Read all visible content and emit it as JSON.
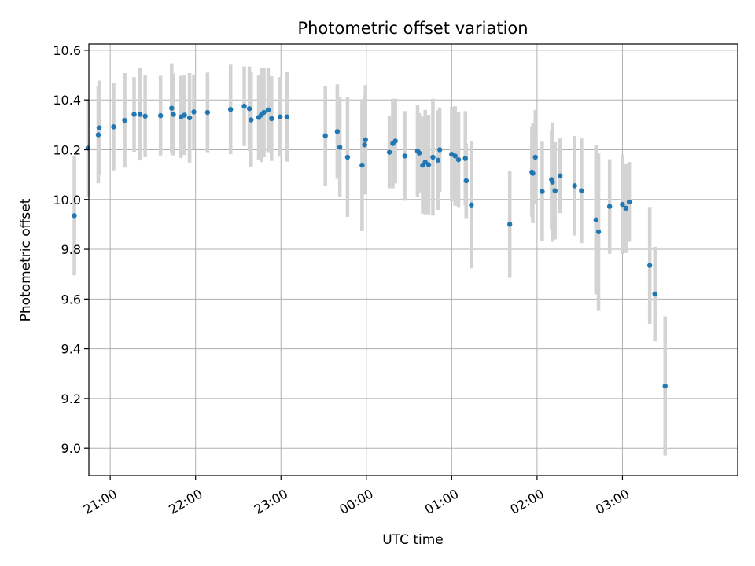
{
  "chart_data": {
    "type": "scatter",
    "title": "Photometric offset variation",
    "xlabel": "UTC time",
    "ylabel": "Photometric offset",
    "x_tick_labels": [
      "21:00",
      "22:00",
      "23:00",
      "00:00",
      "01:00",
      "02:00",
      "03:00"
    ],
    "x_tick_hours": [
      21,
      22,
      23,
      24,
      25,
      26,
      27
    ],
    "y_ticks": [
      9.0,
      9.2,
      9.4,
      9.6,
      9.8,
      10.0,
      10.2,
      10.4,
      10.6
    ],
    "xlim_hours": [
      20.75,
      28.35
    ],
    "ylim": [
      8.89,
      10.625
    ],
    "grid": true,
    "colors": {
      "point": "#1f77b4",
      "errorbar": "#d3d3d3",
      "grid": "#b0b0b0"
    },
    "points_hours_value_error": [
      [
        20.58,
        9.935,
        0.24
      ],
      [
        20.74,
        10.207,
        0.195
      ],
      [
        20.86,
        10.26,
        0.195
      ],
      [
        20.87,
        10.288,
        0.19
      ],
      [
        21.04,
        10.292,
        0.175
      ],
      [
        21.17,
        10.318,
        0.19
      ],
      [
        21.28,
        10.342,
        0.15
      ],
      [
        21.35,
        10.342,
        0.185
      ],
      [
        21.41,
        10.335,
        0.165
      ],
      [
        21.59,
        10.337,
        0.16
      ],
      [
        21.72,
        10.367,
        0.18
      ],
      [
        21.74,
        10.342,
        0.165
      ],
      [
        21.83,
        10.332,
        0.165
      ],
      [
        21.87,
        10.339,
        0.16
      ],
      [
        21.93,
        10.328,
        0.18
      ],
      [
        21.98,
        10.352,
        0.15
      ],
      [
        22.14,
        10.35,
        0.16
      ],
      [
        22.41,
        10.362,
        0.18
      ],
      [
        22.57,
        10.375,
        0.16
      ],
      [
        22.63,
        10.365,
        0.17
      ],
      [
        22.65,
        10.32,
        0.19
      ],
      [
        22.74,
        10.33,
        0.17
      ],
      [
        22.77,
        10.34,
        0.19
      ],
      [
        22.8,
        10.35,
        0.18
      ],
      [
        22.85,
        10.36,
        0.17
      ],
      [
        22.89,
        10.325,
        0.17
      ],
      [
        22.99,
        10.332,
        0.16
      ],
      [
        23.07,
        10.332,
        0.18
      ],
      [
        23.52,
        10.256,
        0.2
      ],
      [
        23.66,
        10.273,
        0.19
      ],
      [
        23.69,
        10.21,
        0.2
      ],
      [
        23.78,
        10.17,
        0.24
      ],
      [
        23.95,
        10.138,
        0.265
      ],
      [
        23.98,
        10.22,
        0.2
      ],
      [
        23.99,
        10.24,
        0.22
      ],
      [
        24.27,
        10.19,
        0.145
      ],
      [
        24.31,
        10.225,
        0.18
      ],
      [
        24.34,
        10.235,
        0.17
      ],
      [
        24.45,
        10.175,
        0.18
      ],
      [
        24.6,
        10.195,
        0.185
      ],
      [
        24.62,
        10.187,
        0.16
      ],
      [
        24.66,
        10.138,
        0.195
      ],
      [
        24.69,
        10.15,
        0.21
      ],
      [
        24.73,
        10.14,
        0.2
      ],
      [
        24.78,
        10.17,
        0.235
      ],
      [
        24.84,
        10.158,
        0.2
      ],
      [
        24.86,
        10.2,
        0.17
      ],
      [
        25.0,
        10.182,
        0.19
      ],
      [
        25.04,
        10.175,
        0.2
      ],
      [
        25.08,
        10.16,
        0.19
      ],
      [
        25.16,
        10.165,
        0.19
      ],
      [
        25.17,
        10.075,
        0.15
      ],
      [
        25.23,
        9.978,
        0.255
      ],
      [
        25.68,
        9.9,
        0.215
      ],
      [
        25.94,
        10.11,
        0.18
      ],
      [
        25.95,
        10.105,
        0.2
      ],
      [
        25.98,
        10.17,
        0.19
      ],
      [
        26.06,
        10.032,
        0.2
      ],
      [
        26.17,
        10.08,
        0.2
      ],
      [
        26.18,
        10.07,
        0.24
      ],
      [
        26.21,
        10.035,
        0.195
      ],
      [
        26.27,
        10.095,
        0.15
      ],
      [
        26.44,
        10.055,
        0.2
      ],
      [
        26.52,
        10.035,
        0.21
      ],
      [
        26.69,
        9.918,
        0.3
      ],
      [
        26.72,
        9.87,
        0.315
      ],
      [
        26.85,
        9.972,
        0.19
      ],
      [
        27.0,
        9.98,
        0.2
      ],
      [
        27.04,
        9.965,
        0.18
      ],
      [
        27.08,
        9.99,
        0.16
      ],
      [
        27.32,
        9.735,
        0.235
      ],
      [
        27.38,
        9.62,
        0.19
      ],
      [
        27.5,
        9.25,
        0.28
      ]
    ]
  }
}
